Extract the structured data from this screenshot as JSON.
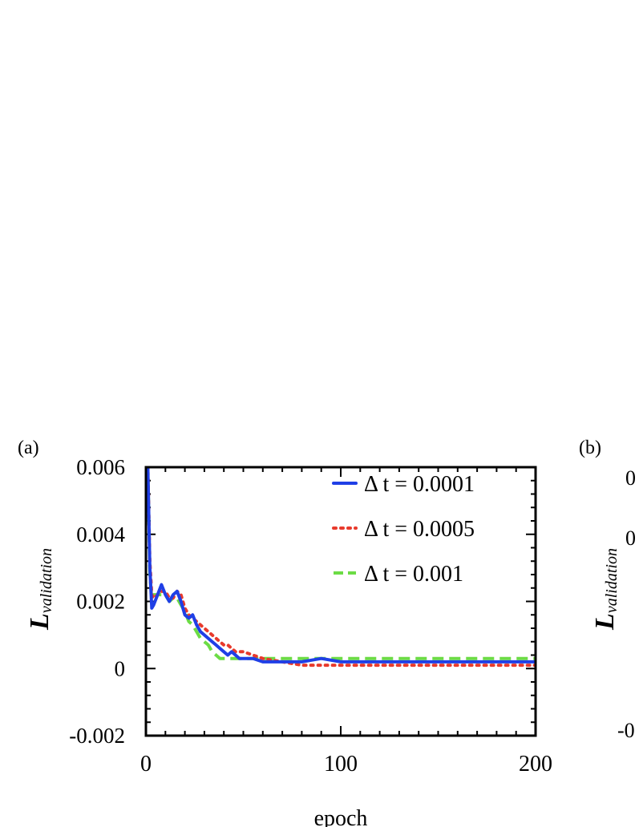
{
  "chart_data": [
    {
      "panel_label": "(a)",
      "type": "line",
      "xlabel": "epoch",
      "ylabel_main": "L",
      "ylabel_sub": "validation",
      "xlim": [
        0,
        200
      ],
      "ylim": [
        -0.002,
        0.006
      ],
      "x_ticks": [
        "0",
        "100",
        "200"
      ],
      "y_ticks": [
        "0.006",
        "0.004",
        "0.002",
        "0",
        "-0.002"
      ],
      "legend_position": "top-right",
      "series": [
        {
          "name": "Δ t = 0.0001",
          "color": "#1f3fe6",
          "style": "solid",
          "x": [
            0,
            1,
            2,
            3,
            4,
            6,
            8,
            10,
            12,
            14,
            16,
            18,
            20,
            22,
            24,
            26,
            28,
            30,
            32,
            34,
            36,
            38,
            40,
            42,
            44,
            46,
            48,
            50,
            55,
            60,
            70,
            80,
            90,
            100,
            120,
            140,
            160,
            180,
            200
          ],
          "y": [
            0.0065,
            0.006,
            0.003,
            0.0018,
            0.0019,
            0.0022,
            0.0025,
            0.0022,
            0.002,
            0.0022,
            0.0023,
            0.002,
            0.0016,
            0.0015,
            0.0016,
            0.0013,
            0.0011,
            0.001,
            0.0009,
            0.0008,
            0.0007,
            0.0006,
            0.0005,
            0.0004,
            0.0005,
            0.0004,
            0.0003,
            0.0003,
            0.0003,
            0.0002,
            0.0002,
            0.0002,
            0.0003,
            0.0002,
            0.0002,
            0.0002,
            0.0002,
            0.0002,
            0.0002
          ]
        },
        {
          "name": "Δ t = 0.0005",
          "color": "#e83a2c",
          "style": "dotted",
          "x": [
            0,
            1,
            2,
            3,
            4,
            6,
            8,
            10,
            12,
            14,
            16,
            18,
            20,
            22,
            24,
            26,
            28,
            30,
            32,
            34,
            36,
            38,
            40,
            42,
            44,
            46,
            48,
            50,
            55,
            60,
            70,
            80,
            90,
            100,
            120,
            140,
            160,
            180,
            200
          ],
          "y": [
            0.0065,
            0.006,
            0.0032,
            0.0022,
            0.0021,
            0.0022,
            0.0023,
            0.0023,
            0.0021,
            0.0021,
            0.0023,
            0.0022,
            0.0018,
            0.0016,
            0.0015,
            0.0014,
            0.0013,
            0.0012,
            0.0011,
            0.001,
            0.0009,
            0.0008,
            0.0007,
            0.0007,
            0.0006,
            0.0005,
            0.0005,
            0.0005,
            0.0004,
            0.0003,
            0.0002,
            0.0001,
            0.0001,
            0.0001,
            0.0001,
            0.0001,
            0.0001,
            0.0001,
            0.0001
          ]
        },
        {
          "name": "Δ t = 0.001",
          "color": "#6cdc45",
          "style": "dashed",
          "x": [
            0,
            1,
            2,
            3,
            4,
            6,
            8,
            10,
            12,
            14,
            16,
            18,
            20,
            22,
            24,
            26,
            28,
            30,
            32,
            34,
            36,
            38,
            40,
            42,
            44,
            46,
            48,
            50,
            55,
            60,
            70,
            80,
            90,
            100,
            120,
            140,
            160,
            180,
            200
          ],
          "y": [
            0.0066,
            0.006,
            0.0028,
            0.0021,
            0.0022,
            0.0022,
            0.0022,
            0.0022,
            0.002,
            0.0021,
            0.0021,
            0.0019,
            0.0017,
            0.0014,
            0.0013,
            0.0011,
            0.0009,
            0.0008,
            0.0007,
            0.0005,
            0.0004,
            0.0003,
            0.0003,
            0.0003,
            0.0003,
            0.0003,
            0.0003,
            0.0003,
            0.0003,
            0.0003,
            0.0003,
            0.0003,
            0.0003,
            0.0003,
            0.0003,
            0.0003,
            0.0003,
            0.0003,
            0.0003
          ]
        }
      ]
    },
    {
      "panel_label": "(b)",
      "type": "line",
      "ylabel_main": "L",
      "ylabel_sub": "validation",
      "y_ticks": [
        "0",
        "0",
        "-0"
      ],
      "series": []
    }
  ]
}
